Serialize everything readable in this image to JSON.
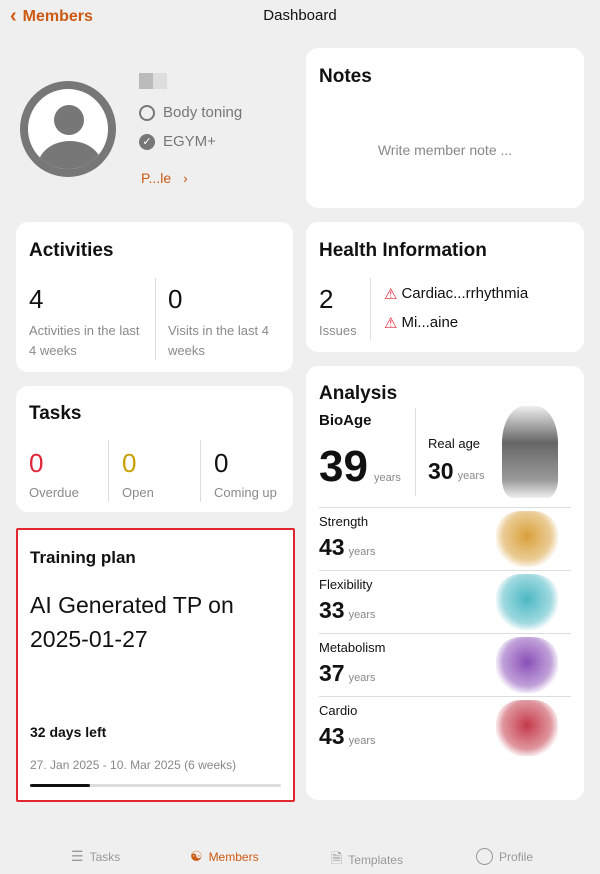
{
  "header": {
    "back_label": "Members",
    "title": "Dashboard"
  },
  "profile": {
    "goal": "Body toning",
    "membership": "EGYM+",
    "profile_link": "P...le"
  },
  "notes": {
    "title": "Notes",
    "placeholder": "Write member note ..."
  },
  "activities": {
    "title": "Activities",
    "count": "4",
    "count_label": "Activities in the last 4 weeks",
    "visits": "0",
    "visits_label": "Visits in the last 4 weeks"
  },
  "health": {
    "title": "Health Information",
    "count": "2",
    "count_label": "Issues",
    "issues": [
      "Cardiac...rrhythmia",
      "Mi...aine"
    ]
  },
  "tasks": {
    "title": "Tasks",
    "overdue": "0",
    "overdue_label": "Overdue",
    "open": "0",
    "open_label": "Open",
    "coming": "0",
    "coming_label": "Coming up"
  },
  "training": {
    "title": "Training plan",
    "name": "AI Generated TP on 2025-01-27",
    "days_left": "32 days left",
    "range": "27. Jan 2025 - 10. Mar 2025 (6 weeks)",
    "progress_percent": 24
  },
  "analysis": {
    "title": "Analysis",
    "bioage_label": "BioAge",
    "bioage": "39",
    "years": "years",
    "realage_label": "Real age",
    "realage": "30",
    "rows": [
      {
        "label": "Strength",
        "value": "43",
        "color": "#d9a03a"
      },
      {
        "label": "Flexibility",
        "value": "33",
        "color": "#4cb8c4"
      },
      {
        "label": "Metabolism",
        "value": "37",
        "color": "#8a4fb8"
      },
      {
        "label": "Cardio",
        "value": "43",
        "color": "#c43a4a"
      }
    ]
  },
  "bottom_nav": [
    {
      "label": "Tasks"
    },
    {
      "label": "Members"
    },
    {
      "label": "Templates"
    },
    {
      "label": "Profile"
    }
  ],
  "colors": {
    "accent": "#cc5a12",
    "overdue": "#e0263a",
    "open": "#c9a000",
    "highlight_border": "#e0262e"
  }
}
